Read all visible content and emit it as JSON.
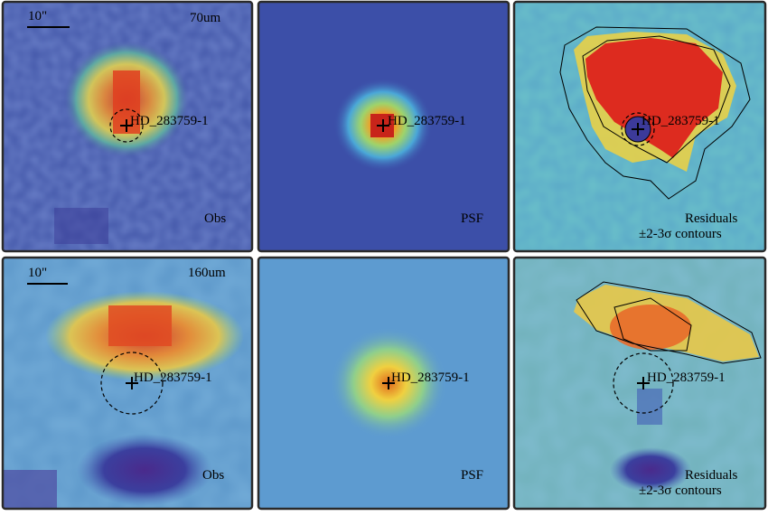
{
  "target_name": "HD_283759-1",
  "scale_bar_label": "10\"",
  "rows": [
    {
      "band": "70um",
      "panels": [
        {
          "label": "Obs"
        },
        {
          "label": "PSF"
        },
        {
          "label": "Residuals",
          "sublabel": "±2-3σ contours"
        }
      ]
    },
    {
      "band": "160um",
      "panels": [
        {
          "label": "Obs"
        },
        {
          "label": "PSF"
        },
        {
          "label": "Residuals",
          "sublabel": "±2-3σ contours"
        }
      ]
    }
  ],
  "colors": {
    "frame": "#2a2a2a",
    "background_psf70": "#3c4fa8",
    "background_psf160": "#5d9bd0",
    "peak": "#d62a1e"
  }
}
